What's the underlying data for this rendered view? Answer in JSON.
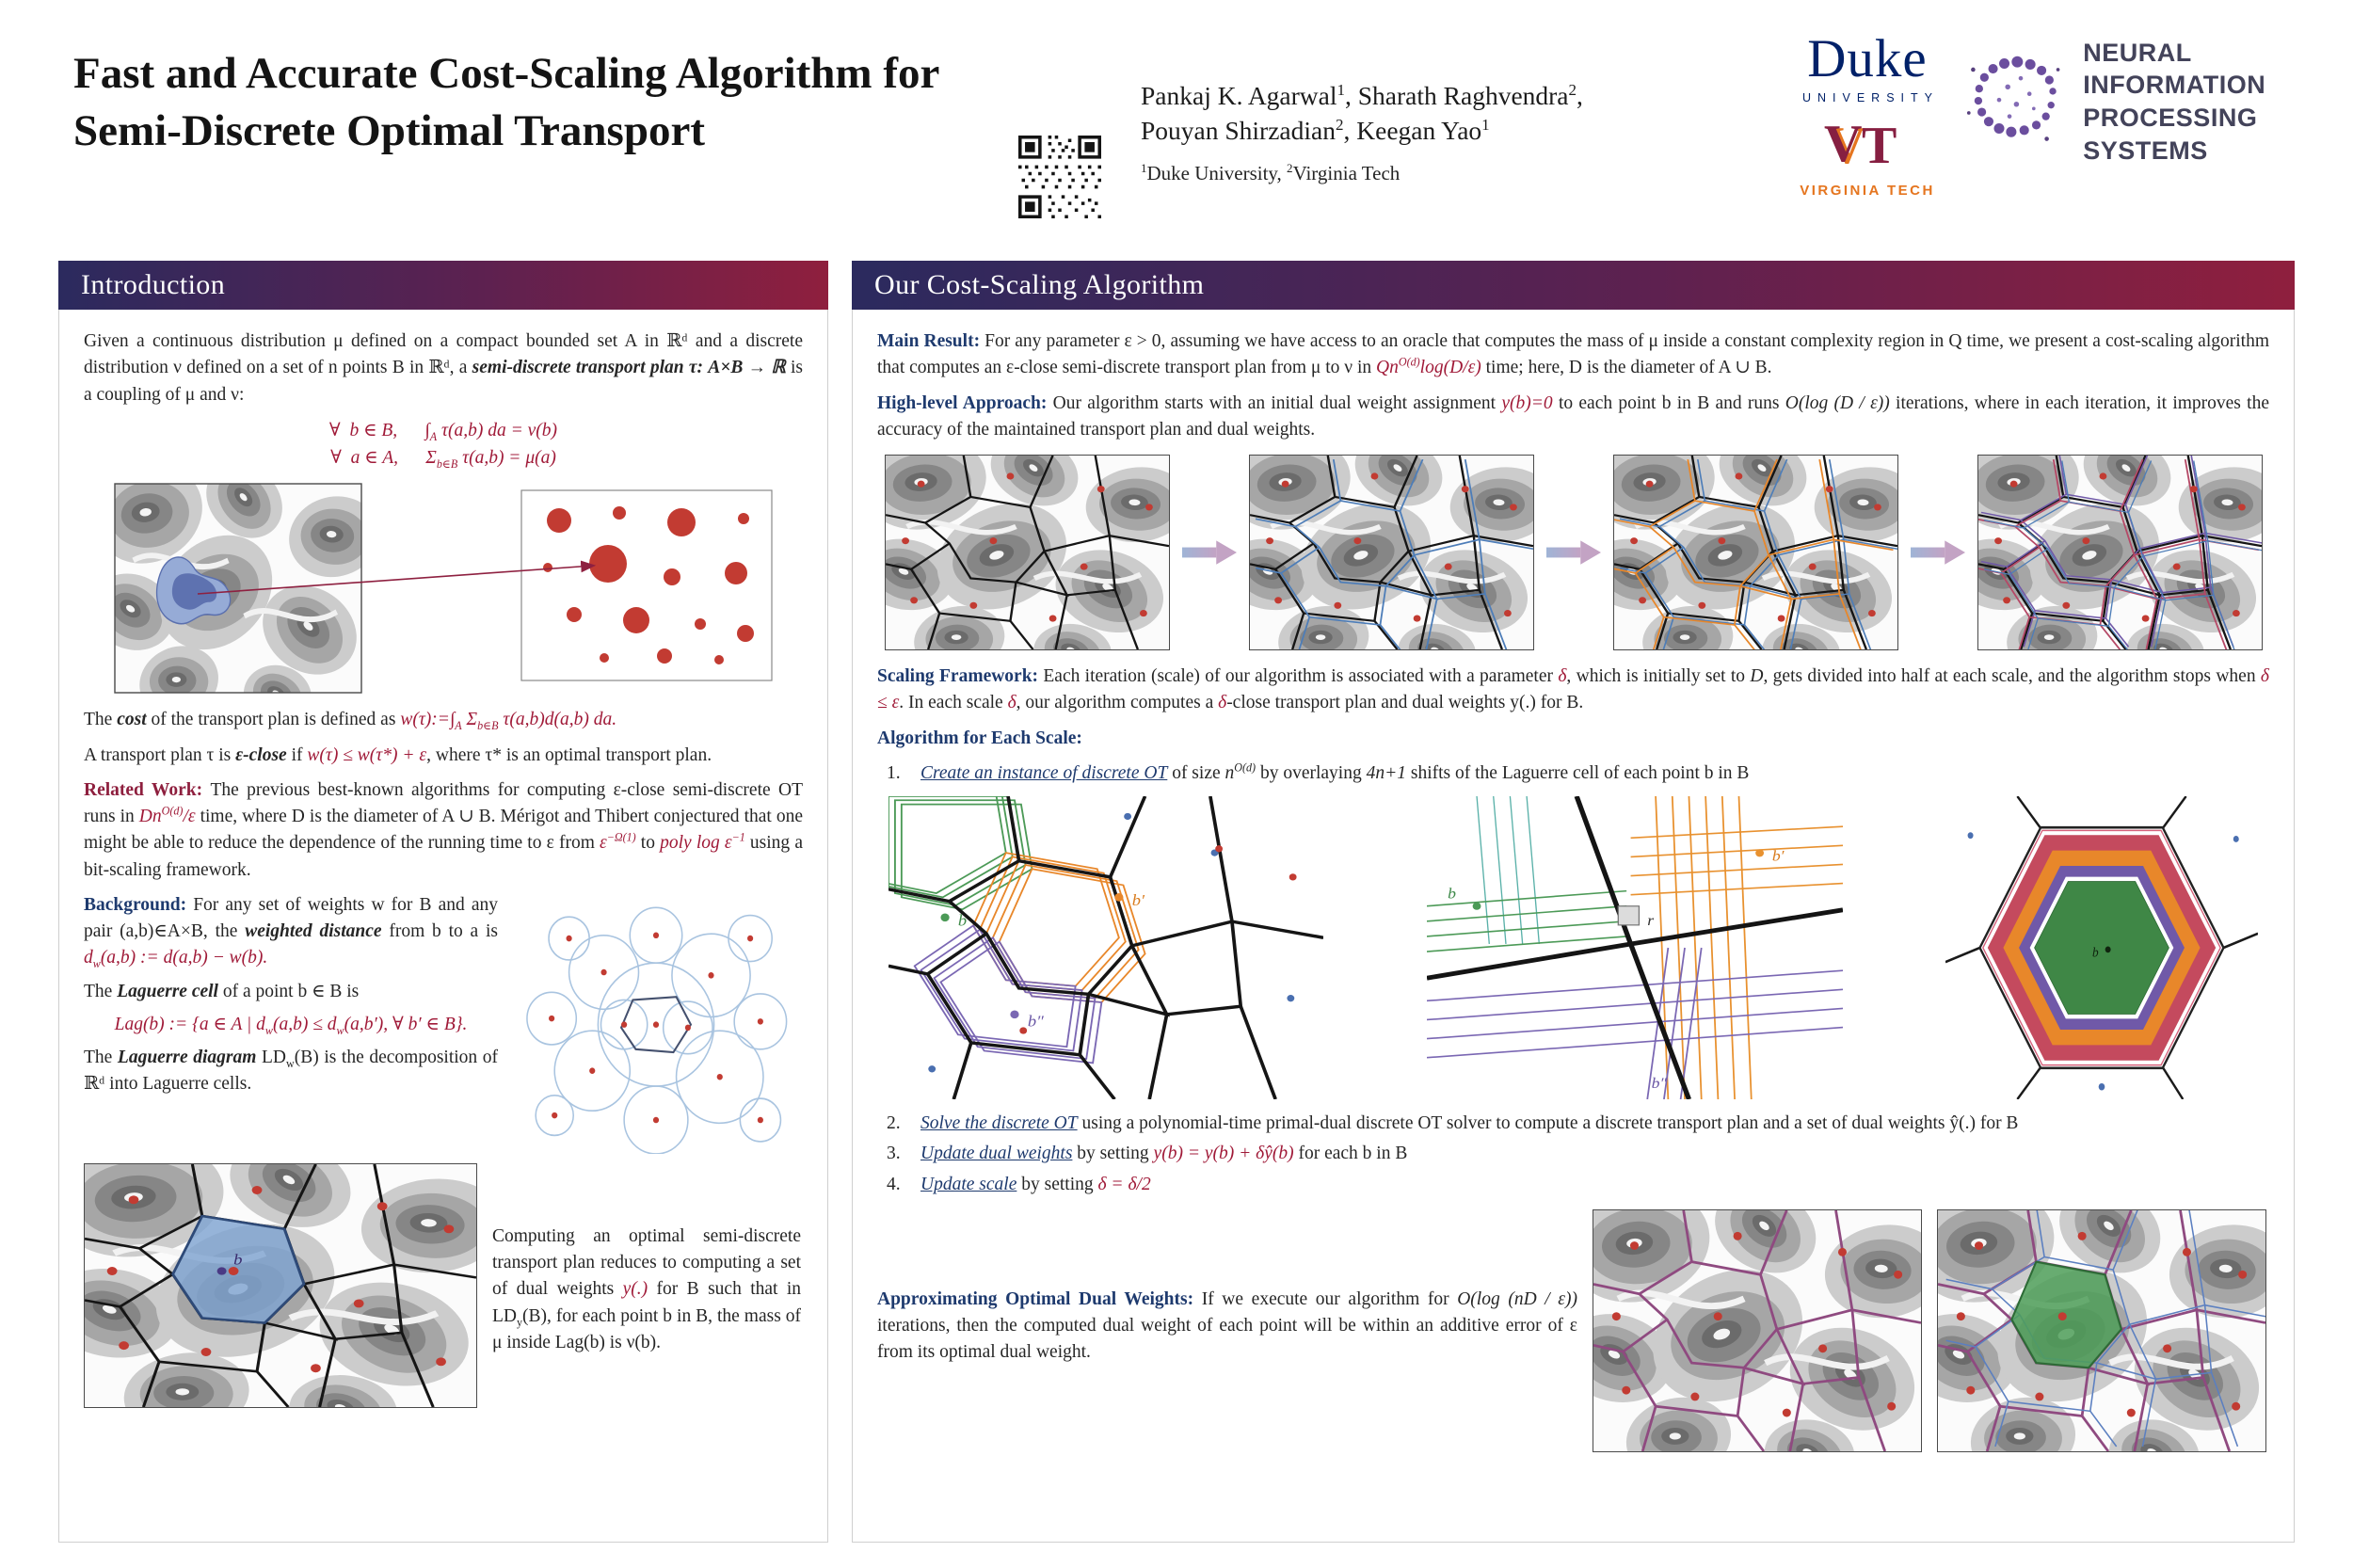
{
  "theme": {
    "header_gradient_left": "#2b2a5e",
    "header_gradient_right": "#8f1f3e",
    "math_maroon": "#a01a38",
    "label_navy": "#1e3a6e",
    "duke_navy": "#012169",
    "vt_maroon": "#861F41",
    "vt_orange": "#E5751F",
    "neurips_purple": "#6b4e9e",
    "dot_red": "#c23b32",
    "overlay_blue": "#4d7db8",
    "overlay_orange": "#e8872a",
    "overlay_purple": "#7059a8",
    "overlay_green": "#3f8746"
  },
  "header": {
    "title_line1": "Fast and Accurate Cost-Scaling Algorithm for",
    "title_line2": "Semi-Discrete Optimal Transport",
    "authors_line1": [
      {
        "t": "Pankaj K. Agarwal"
      },
      {
        "t": "1",
        "c": "sup"
      },
      {
        "t": ", Sharath Raghvendra"
      },
      {
        "t": "2",
        "c": "sup"
      },
      {
        "t": ","
      }
    ],
    "authors_line2": [
      {
        "t": "Pouyan Shirzadian"
      },
      {
        "t": "2",
        "c": "sup"
      },
      {
        "t": ", Keegan Yao"
      },
      {
        "t": "1",
        "c": "sup"
      }
    ],
    "affiliations": [
      {
        "t": "1",
        "c": "sup"
      },
      {
        "t": "Duke University, "
      },
      {
        "t": "2",
        "c": "sup"
      },
      {
        "t": "Virginia Tech"
      }
    ],
    "logos": {
      "duke_name": "Duke",
      "duke_university": "UNIVERSITY",
      "vt_name": "VIRGINIA TECH",
      "neurips_line1": "NEURAL INFORMATION",
      "neurips_line2": "PROCESSING SYSTEMS"
    }
  },
  "intro": {
    "title": "Introduction",
    "p1": [
      {
        "t": "Given a continuous distribution μ defined on a compact bounded set A in ℝᵈ and a discrete distribution ν defined on a set of n points B in ℝᵈ, a "
      },
      {
        "t": "semi-discrete transport plan τ: A×B → ℝ",
        "c": "bi"
      },
      {
        "t": " is a coupling of μ and ν:"
      }
    ],
    "math1": [
      {
        "t": "∀  b ∈ B,      ∫",
        "c": "m"
      },
      {
        "t": "A",
        "c": "m sub"
      },
      {
        "t": " τ(a,b) da = ν(b)",
        "c": "m"
      }
    ],
    "math2": [
      {
        "t": "∀  a ∈ A,      Σ",
        "c": "m"
      },
      {
        "t": "b∈B",
        "c": "m sub"
      },
      {
        "t": " τ(a,b) = μ(a)",
        "c": "m"
      }
    ],
    "cost": [
      {
        "t": "The "
      },
      {
        "t": "cost",
        "c": "bi"
      },
      {
        "t": " of the transport plan is defined as "
      },
      {
        "t": "w(τ):=∫",
        "c": "m"
      },
      {
        "t": "A",
        "c": "m sub"
      },
      {
        "t": " Σ",
        "c": "m"
      },
      {
        "t": "b∈B",
        "c": "m sub"
      },
      {
        "t": " τ(a,b)d(a,b) da.",
        "c": "m"
      }
    ],
    "eclose": [
      {
        "t": "A transport plan τ is "
      },
      {
        "t": "ε-close",
        "c": "bi"
      },
      {
        "t": " if "
      },
      {
        "t": "w(τ) ≤ w(τ*) + ε",
        "c": "m"
      },
      {
        "t": ", where τ* is an optimal transport plan."
      }
    ],
    "related": [
      {
        "t": "Related Work: ",
        "c": "mb"
      },
      {
        "t": "The previous best-known algorithms for computing ε-close semi-discrete OT runs in "
      },
      {
        "t": "Dn",
        "c": "m"
      },
      {
        "t": "O(d)",
        "c": "m sup"
      },
      {
        "t": "/ε",
        "c": "m"
      },
      {
        "t": " time, where D is the diameter of A ∪ B. Mérigot and Thibert conjectured that one might be able to reduce the dependence of the running time to ε from "
      },
      {
        "t": "ε",
        "c": "m"
      },
      {
        "t": "−Ω(1)",
        "c": "m sup"
      },
      {
        "t": " to "
      },
      {
        "t": "poly log ε",
        "c": "m"
      },
      {
        "t": "−1",
        "c": "m sup"
      },
      {
        "t": " using a bit-scaling framework."
      }
    ],
    "background": [
      {
        "t": "Background: ",
        "c": "nb"
      },
      {
        "t": "For any set of weights w for B and any pair (a,b)∈A×B, the "
      },
      {
        "t": "weighted distance",
        "c": "bi"
      },
      {
        "t": " from b to a is "
      },
      {
        "t": "d",
        "c": "m"
      },
      {
        "t": "w",
        "c": "m sub"
      },
      {
        "t": "(a,b) := d(a,b) − w(b).",
        "c": "m"
      }
    ],
    "laguerre_cell_intro": [
      {
        "t": "The "
      },
      {
        "t": "Laguerre cell",
        "c": "bi"
      },
      {
        "t": " of a point b ∈ B is"
      }
    ],
    "laguerre_formula": [
      {
        "t": "Lag(b) := {a ∈ A | d",
        "c": "m"
      },
      {
        "t": "w",
        "c": "m sub"
      },
      {
        "t": "(a,b) ≤ d",
        "c": "m"
      },
      {
        "t": "w",
        "c": "m sub"
      },
      {
        "t": "(a,b′), ∀ b′ ∈ B}.",
        "c": "m"
      }
    ],
    "laguerre_diagram": [
      {
        "t": "The "
      },
      {
        "t": "Laguerre diagram",
        "c": "bi"
      },
      {
        "t": " LD"
      },
      {
        "t": "w",
        "c": "sub"
      },
      {
        "t": "(B) is the decomposition of ℝᵈ into Laguerre cells."
      }
    ],
    "caption": [
      {
        "t": "Computing an optimal semi-discrete transport plan reduces to computing a set of dual weights "
      },
      {
        "t": "y(.)",
        "c": "m"
      },
      {
        "t": " for B such that in LD"
      },
      {
        "t": "y",
        "c": "sub"
      },
      {
        "t": "(B),  for each point b in B, the mass of μ inside Lag(b) is ν(b)."
      }
    ],
    "fig_label_b": "b"
  },
  "algo": {
    "title": "Our Cost-Scaling Algorithm",
    "main_result": [
      {
        "t": "Main Result: ",
        "c": "nb"
      },
      {
        "t": "For any parameter ε > 0, assuming we have access to an oracle that computes the mass of μ inside a constant complexity region in Q time, we present a cost-scaling algorithm that computes an ε-close semi-discrete transport plan from μ to ν in "
      },
      {
        "t": "Qn",
        "c": "m"
      },
      {
        "t": "O(d)",
        "c": "m sup"
      },
      {
        "t": "log(D/ε)",
        "c": "m"
      },
      {
        "t": " time; here, D is the diameter of A ∪ B."
      }
    ],
    "high_level": [
      {
        "t": "High-level Approach: ",
        "c": "nb"
      },
      {
        "t": "Our algorithm starts with an initial dual weight assignment "
      },
      {
        "t": "y(b)=0",
        "c": "m"
      },
      {
        "t": " to each point b in B and runs "
      },
      {
        "t": "O(log (D / ε))",
        "c": "i"
      },
      {
        "t": " iterations, where in each iteration, it improves the accuracy of the maintained transport plan and dual weights."
      }
    ],
    "scaling": [
      {
        "t": "Scaling Framework: ",
        "c": "nb"
      },
      {
        "t": "Each iteration (scale) of our algorithm is associated with a parameter "
      },
      {
        "t": "δ",
        "c": "m"
      },
      {
        "t": ", which is initially set to "
      },
      {
        "t": "D",
        "c": "i"
      },
      {
        "t": ", gets divided into half at each scale, and the algorithm stops when "
      },
      {
        "t": "δ ≤ ε",
        "c": "m"
      },
      {
        "t": ". In each scale "
      },
      {
        "t": "δ",
        "c": "m"
      },
      {
        "t": ", our algorithm computes a "
      },
      {
        "t": "δ",
        "c": "m"
      },
      {
        "t": "-close transport plan and dual weights y(.) for B."
      }
    ],
    "each_scale_heading": [
      {
        "t": "Algorithm for Each Scale:",
        "c": "nb"
      }
    ],
    "step_numbers": [
      "1.",
      "2.",
      "3.",
      "4."
    ],
    "step1": [
      {
        "t": "Create an instance of discrete OT",
        "c": "iu"
      },
      {
        "t": " of size "
      },
      {
        "t": "n",
        "c": "i"
      },
      {
        "t": "O(d)",
        "c": "sup i"
      },
      {
        "t": " by overlaying "
      },
      {
        "t": "4n+1",
        "c": "i"
      },
      {
        "t": " shifts of the Laguerre cell of each point b in B"
      }
    ],
    "step2": [
      {
        "t": "Solve the discrete OT",
        "c": "iu"
      },
      {
        "t": " using a polynomial-time primal-dual discrete OT solver to compute a discrete transport plan and a set of dual weights ŷ(.) for B"
      }
    ],
    "step3": [
      {
        "t": "Update dual weights",
        "c": "iu"
      },
      {
        "t": " by setting "
      },
      {
        "t": "y(b) = y(b) + δŷ(b)",
        "c": "m"
      },
      {
        "t": " for each b in B"
      }
    ],
    "step4": [
      {
        "t": "Update scale",
        "c": "iu"
      },
      {
        "t": " by setting "
      },
      {
        "t": "δ = δ/2",
        "c": "m"
      }
    ],
    "approx": [
      {
        "t": "Approximating Optimal Dual Weights: ",
        "c": "nb"
      },
      {
        "t": "If we execute our algorithm for "
      },
      {
        "t": "O(log (nD / ε))",
        "c": "i"
      },
      {
        "t": " iterations, then the computed dual weight of each point will be within an additive error of ε from its optimal dual weight."
      }
    ],
    "fig_labels": {
      "b": "b",
      "bp": "b′",
      "bpp": "b″",
      "r": "r"
    }
  }
}
